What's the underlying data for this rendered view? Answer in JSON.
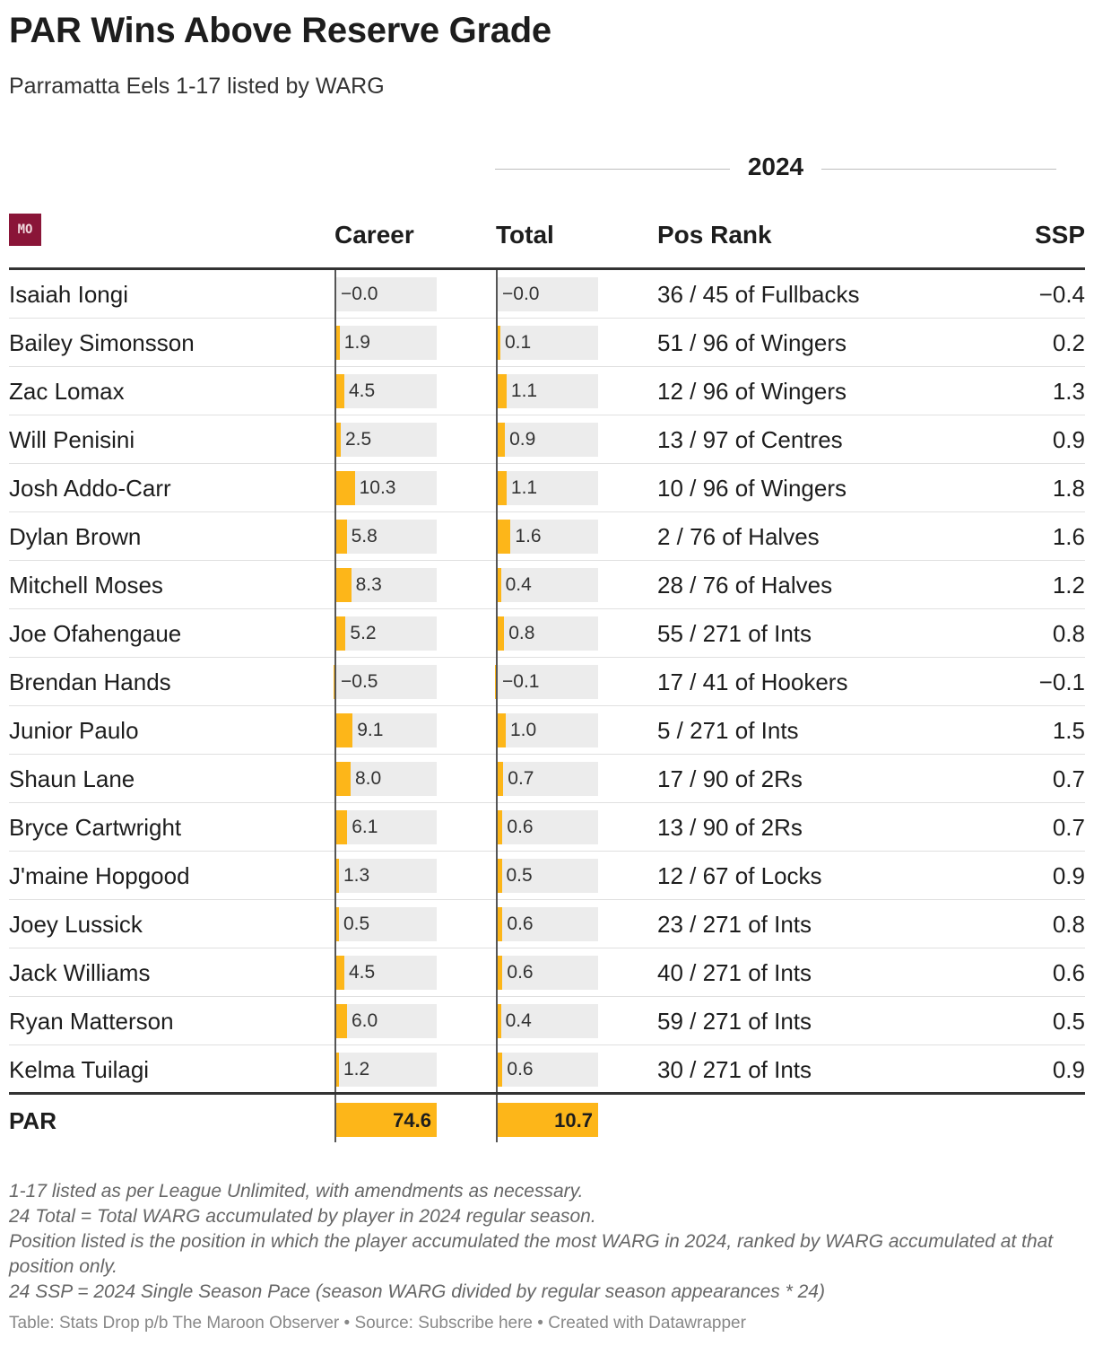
{
  "title": "PAR Wins Above Reserve Grade",
  "subtitle": "Parramatta Eels 1-17 listed by WARG",
  "group_header": "2024",
  "logo_text": "MO",
  "columns": {
    "name": "",
    "career": "Career",
    "total": "Total",
    "pos_rank": "Pos Rank",
    "ssp": "SSP"
  },
  "colors": {
    "bar": "#fdb619",
    "bar_bg": "#ececec",
    "logo_bg": "#8a1538"
  },
  "chart_data": {
    "type": "table",
    "bar_columns": [
      "Career",
      "Total"
    ],
    "career_scale_max": 74.6,
    "rows": [
      {
        "name": "Isaiah Iongi",
        "career": -0.0,
        "career_label": "−0.0",
        "total": -0.0,
        "total_label": "−0.0",
        "pos_rank": "36 / 45 of Fullbacks",
        "ssp": "−0.4"
      },
      {
        "name": "Bailey Simonsson",
        "career": 1.9,
        "career_label": "1.9",
        "total": 0.1,
        "total_label": "0.1",
        "pos_rank": "51 / 96 of Wingers",
        "ssp": "0.2"
      },
      {
        "name": "Zac Lomax",
        "career": 4.5,
        "career_label": "4.5",
        "total": 1.1,
        "total_label": "1.1",
        "pos_rank": "12 / 96 of Wingers",
        "ssp": "1.3"
      },
      {
        "name": "Will Penisini",
        "career": 2.5,
        "career_label": "2.5",
        "total": 0.9,
        "total_label": "0.9",
        "pos_rank": "13 / 97 of Centres",
        "ssp": "0.9"
      },
      {
        "name": "Josh Addo-Carr",
        "career": 10.3,
        "career_label": "10.3",
        "total": 1.1,
        "total_label": "1.1",
        "pos_rank": "10 / 96 of Wingers",
        "ssp": "1.8"
      },
      {
        "name": "Dylan Brown",
        "career": 5.8,
        "career_label": "5.8",
        "total": 1.6,
        "total_label": "1.6",
        "pos_rank": "2 / 76 of Halves",
        "ssp": "1.6"
      },
      {
        "name": "Mitchell Moses",
        "career": 8.3,
        "career_label": "8.3",
        "total": 0.4,
        "total_label": "0.4",
        "pos_rank": "28 / 76 of Halves",
        "ssp": "1.2"
      },
      {
        "name": "Joe Ofahengaue",
        "career": 5.2,
        "career_label": "5.2",
        "total": 0.8,
        "total_label": "0.8",
        "pos_rank": "55 / 271 of Ints",
        "ssp": "0.8"
      },
      {
        "name": "Brendan Hands",
        "career": -0.5,
        "career_label": "−0.5",
        "total": -0.1,
        "total_label": "−0.1",
        "pos_rank": "17 / 41 of Hookers",
        "ssp": "−0.1"
      },
      {
        "name": "Junior Paulo",
        "career": 9.1,
        "career_label": "9.1",
        "total": 1.0,
        "total_label": "1.0",
        "pos_rank": "5 / 271 of Ints",
        "ssp": "1.5"
      },
      {
        "name": "Shaun Lane",
        "career": 8.0,
        "career_label": "8.0",
        "total": 0.7,
        "total_label": "0.7",
        "pos_rank": "17 / 90 of 2Rs",
        "ssp": "0.7"
      },
      {
        "name": "Bryce Cartwright",
        "career": 6.1,
        "career_label": "6.1",
        "total": 0.6,
        "total_label": "0.6",
        "pos_rank": "13 / 90 of 2Rs",
        "ssp": "0.7"
      },
      {
        "name": "J'maine Hopgood",
        "career": 1.3,
        "career_label": "1.3",
        "total": 0.5,
        "total_label": "0.5",
        "pos_rank": "12 / 67 of Locks",
        "ssp": "0.9"
      },
      {
        "name": "Joey Lussick",
        "career": 0.5,
        "career_label": "0.5",
        "total": 0.6,
        "total_label": "0.6",
        "pos_rank": "23 / 271 of Ints",
        "ssp": "0.8"
      },
      {
        "name": "Jack Williams",
        "career": 4.5,
        "career_label": "4.5",
        "total": 0.6,
        "total_label": "0.6",
        "pos_rank": "40 / 271 of Ints",
        "ssp": "0.6"
      },
      {
        "name": "Ryan Matterson",
        "career": 6.0,
        "career_label": "6.0",
        "total": 0.4,
        "total_label": "0.4",
        "pos_rank": "59 / 271 of Ints",
        "ssp": "0.5"
      },
      {
        "name": "Kelma Tuilagi",
        "career": 1.2,
        "career_label": "1.2",
        "total": 0.6,
        "total_label": "0.6",
        "pos_rank": "30 / 271 of Ints",
        "ssp": "0.9"
      }
    ],
    "totals": {
      "name": "PAR",
      "career": 74.6,
      "career_label": "74.6",
      "total": 10.7,
      "total_label": "10.7"
    }
  },
  "notes": [
    "1-17 listed as per League Unlimited, with amendments as necessary.",
    "24 Total = Total WARG accumulated by player in 2024 regular season.",
    "Position listed is the position in which the player accumulated the most WARG in 2024, ranked by WARG accumulated at that position only.",
    "24 SSP = 2024 Single Season Pace (season WARG divided by regular season appearances * 24)"
  ],
  "footer": {
    "table_label": "Table: Stats Drop p/b The Maroon Observer",
    "source_label": "Source: Subscribe here",
    "created_label": "Created with Datawrapper",
    "separator": " • "
  }
}
